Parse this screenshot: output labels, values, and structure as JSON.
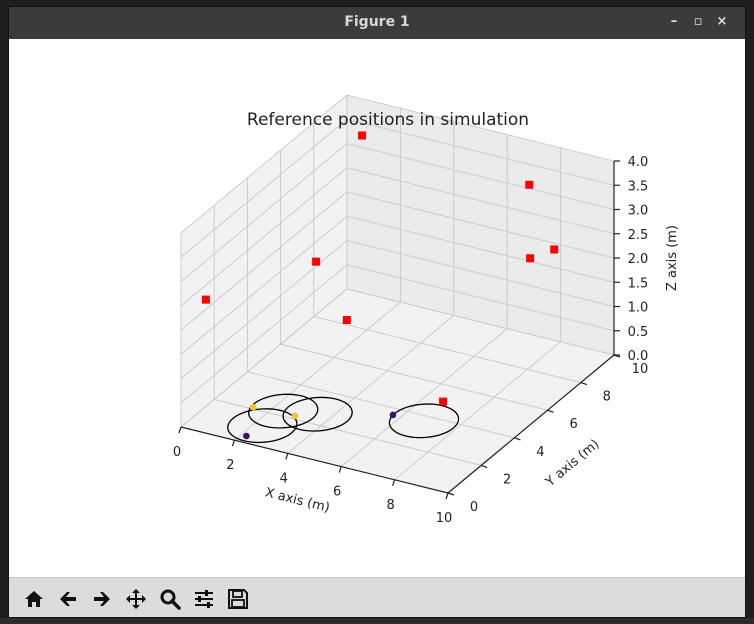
{
  "window": {
    "title": "Figure 1",
    "controls": {
      "minimize": "–",
      "maximize": "▫",
      "close": "×"
    }
  },
  "chart_data": {
    "type": "scatter3d",
    "title": "Reference positions in simulation",
    "xlabel": "X axis (m)",
    "ylabel": "Y axis (m)",
    "zlabel": "Z axis (m)",
    "xlim": [
      0,
      10
    ],
    "ylim": [
      0,
      10
    ],
    "zlim": [
      0,
      4
    ],
    "xticks": [
      "0",
      "2",
      "4",
      "6",
      "8",
      "10"
    ],
    "yticks": [
      "0",
      "2",
      "4",
      "6",
      "8",
      "10"
    ],
    "zticks": [
      "0.0",
      "0.5",
      "1.0",
      "1.5",
      "2.0",
      "2.5",
      "3.0",
      "3.5",
      "4.0"
    ],
    "grid": true,
    "reference_points": {
      "marker": "square",
      "color": "#ff0000",
      "points": [
        {
          "x": 0.0,
          "y": 1.5,
          "z": 2.2
        },
        {
          "x": 2.2,
          "y": 4.6,
          "z": 2.4
        },
        {
          "x": 3.6,
          "y": 4.2,
          "z": 1.5
        },
        {
          "x": 1.0,
          "y": 9.3,
          "z": 3.5
        },
        {
          "x": 8.2,
          "y": 2.6,
          "z": 0.9
        },
        {
          "x": 8.6,
          "y": 7.2,
          "z": 2.6
        },
        {
          "x": 7.2,
          "y": 9.4,
          "z": 3.3
        },
        {
          "x": 10.0,
          "y": 6.4,
          "z": 3.2
        }
      ]
    },
    "circles": {
      "color": "#000000",
      "radius": 1.1,
      "items": [
        {
          "x": 2.4,
          "y": 2.3,
          "z": 0.0
        },
        {
          "x": 3.5,
          "y": 2.6,
          "z": 0.0
        },
        {
          "x": 2.3,
          "y": 1.2,
          "z": 0.0
        },
        {
          "x": 6.8,
          "y": 3.7,
          "z": 0.0
        }
      ]
    },
    "positions": {
      "marker": "circle",
      "points": [
        {
          "x": 2.2,
          "y": 0.4,
          "z": 0.0,
          "color": "#3b0f70"
        },
        {
          "x": 5.7,
          "y": 3.6,
          "z": 0.0,
          "color": "#3b0f70"
        },
        {
          "x": 1.4,
          "y": 2.1,
          "z": 0.0,
          "color": "#f2c230"
        },
        {
          "x": 2.9,
          "y": 2.2,
          "z": 0.0,
          "color": "#f2c230"
        }
      ]
    }
  },
  "toolbar": {
    "buttons": [
      {
        "name": "home",
        "icon": "home-icon"
      },
      {
        "name": "back",
        "icon": "arrow-left-icon"
      },
      {
        "name": "forward",
        "icon": "arrow-right-icon"
      },
      {
        "name": "pan",
        "icon": "move-icon"
      },
      {
        "name": "zoom",
        "icon": "magnifier-icon"
      },
      {
        "name": "configure",
        "icon": "sliders-icon"
      },
      {
        "name": "save",
        "icon": "floppy-icon"
      }
    ]
  }
}
